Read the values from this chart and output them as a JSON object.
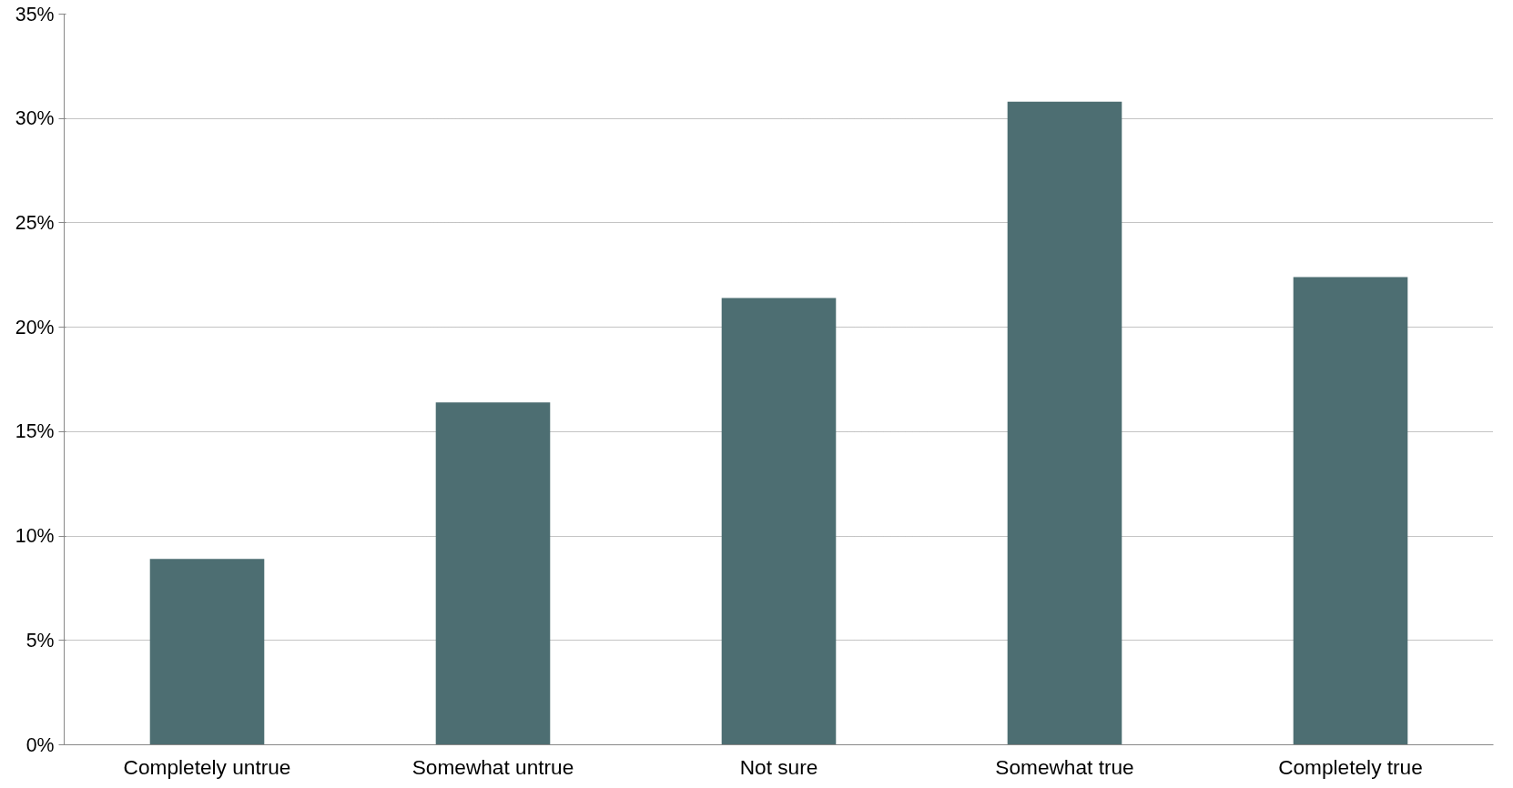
{
  "chart_data": {
    "type": "bar",
    "categories": [
      "Completely untrue",
      "Somewhat untrue",
      "Not sure",
      "Somewhat true",
      "Completely true"
    ],
    "values": [
      8.9,
      16.4,
      21.4,
      30.8,
      22.4
    ],
    "color": "#4d6e72",
    "ylim": [
      0,
      35
    ],
    "yticks": [
      {
        "value": 0,
        "label": "0%"
      },
      {
        "value": 5,
        "label": "5%"
      },
      {
        "value": 10,
        "label": "10%"
      },
      {
        "value": 15,
        "label": "15%"
      },
      {
        "value": 20,
        "label": "20%"
      },
      {
        "value": 25,
        "label": "25%"
      },
      {
        "value": 30,
        "label": "30%"
      },
      {
        "value": 35,
        "label": "35%"
      }
    ],
    "grid": "y"
  }
}
